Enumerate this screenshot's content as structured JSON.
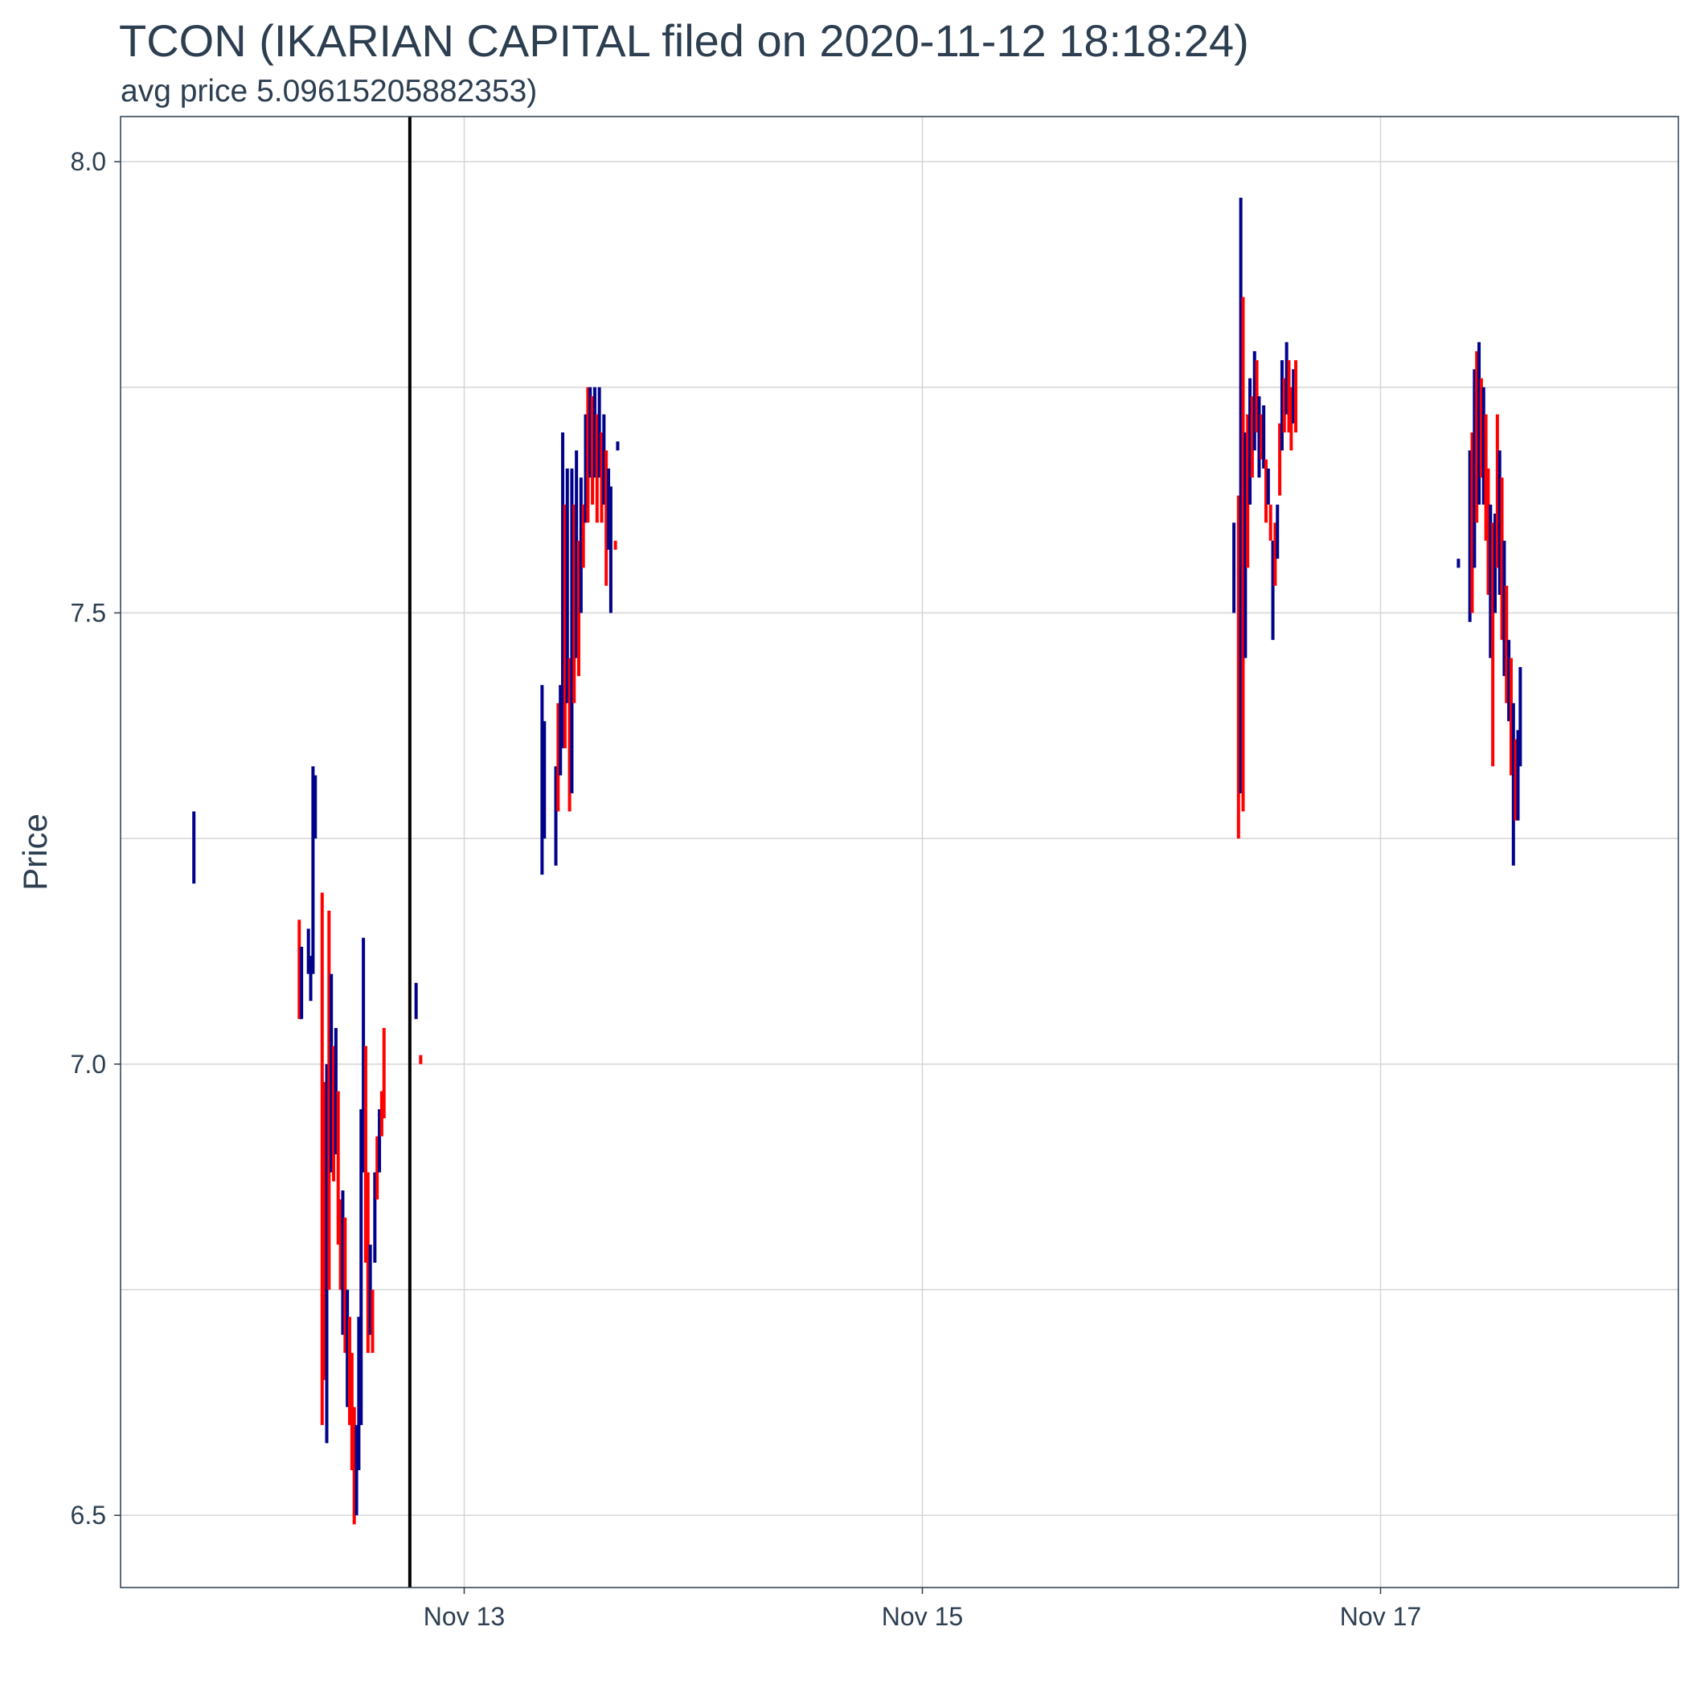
{
  "chart_data": {
    "type": "candlestick",
    "title": "TCON (IKARIAN CAPITAL filed on 2020-11-12 18:18:24)",
    "subtitle": "avg price 5.09615205882353)",
    "xlabel": "",
    "ylabel": "Price",
    "x_ticks": [
      {
        "label": "Nov 13",
        "t": 13.0
      },
      {
        "label": "Nov 15",
        "t": 15.0
      },
      {
        "label": "Nov 17",
        "t": 17.0
      }
    ],
    "x_range": [
      11.5,
      18.3
    ],
    "y_ticks": [
      6.5,
      7.0,
      7.5,
      8.0
    ],
    "y_tick_labels": [
      "6.5",
      "7.0",
      "7.5",
      "8.0"
    ],
    "ylim": [
      6.42,
      8.05
    ],
    "grid": true,
    "filing_time": 12.7627,
    "colors": {
      "up": "#00008b",
      "down": "#ff0000",
      "marker": "#000000",
      "grid": "#d5d5d5",
      "panel_border": "#2c3e50"
    },
    "candles": [
      {
        "t": 11.82,
        "low": 7.2,
        "high": 7.28,
        "dir": "up"
      },
      {
        "t": 12.28,
        "low": 7.05,
        "high": 7.16,
        "dir": "down"
      },
      {
        "t": 12.29,
        "low": 7.05,
        "high": 7.13,
        "dir": "up"
      },
      {
        "t": 12.32,
        "low": 7.1,
        "high": 7.15,
        "dir": "up"
      },
      {
        "t": 12.33,
        "low": 7.07,
        "high": 7.12,
        "dir": "up"
      },
      {
        "t": 12.34,
        "low": 7.1,
        "high": 7.33,
        "dir": "up"
      },
      {
        "t": 12.35,
        "low": 7.25,
        "high": 7.32,
        "dir": "up"
      },
      {
        "t": 12.38,
        "low": 6.6,
        "high": 7.19,
        "dir": "down"
      },
      {
        "t": 12.39,
        "low": 6.65,
        "high": 6.98,
        "dir": "down"
      },
      {
        "t": 12.4,
        "low": 6.58,
        "high": 7.0,
        "dir": "up"
      },
      {
        "t": 12.41,
        "low": 6.75,
        "high": 7.17,
        "dir": "down"
      },
      {
        "t": 12.42,
        "low": 6.88,
        "high": 7.1,
        "dir": "up"
      },
      {
        "t": 12.43,
        "low": 6.87,
        "high": 7.02,
        "dir": "down"
      },
      {
        "t": 12.44,
        "low": 6.9,
        "high": 7.04,
        "dir": "up"
      },
      {
        "t": 12.45,
        "low": 6.8,
        "high": 6.97,
        "dir": "down"
      },
      {
        "t": 12.46,
        "low": 6.75,
        "high": 6.85,
        "dir": "down"
      },
      {
        "t": 12.47,
        "low": 6.7,
        "high": 6.86,
        "dir": "up"
      },
      {
        "t": 12.48,
        "low": 6.68,
        "high": 6.83,
        "dir": "down"
      },
      {
        "t": 12.49,
        "low": 6.62,
        "high": 6.75,
        "dir": "up"
      },
      {
        "t": 12.5,
        "low": 6.6,
        "high": 6.72,
        "dir": "down"
      },
      {
        "t": 12.51,
        "low": 6.55,
        "high": 6.68,
        "dir": "down"
      },
      {
        "t": 12.52,
        "low": 6.49,
        "high": 6.62,
        "dir": "down"
      },
      {
        "t": 12.53,
        "low": 6.5,
        "high": 6.6,
        "dir": "up"
      },
      {
        "t": 12.54,
        "low": 6.55,
        "high": 6.72,
        "dir": "up"
      },
      {
        "t": 12.55,
        "low": 6.6,
        "high": 6.95,
        "dir": "up"
      },
      {
        "t": 12.56,
        "low": 6.88,
        "high": 7.14,
        "dir": "up"
      },
      {
        "t": 12.57,
        "low": 6.78,
        "high": 7.02,
        "dir": "down"
      },
      {
        "t": 12.58,
        "low": 6.68,
        "high": 6.88,
        "dir": "down"
      },
      {
        "t": 12.59,
        "low": 6.7,
        "high": 6.8,
        "dir": "up"
      },
      {
        "t": 12.6,
        "low": 6.68,
        "high": 6.75,
        "dir": "down"
      },
      {
        "t": 12.61,
        "low": 6.78,
        "high": 6.88,
        "dir": "up"
      },
      {
        "t": 12.62,
        "low": 6.85,
        "high": 6.92,
        "dir": "down"
      },
      {
        "t": 12.63,
        "low": 6.88,
        "high": 6.95,
        "dir": "up"
      },
      {
        "t": 12.64,
        "low": 6.92,
        "high": 6.97,
        "dir": "down"
      },
      {
        "t": 12.65,
        "low": 6.94,
        "high": 7.04,
        "dir": "down"
      },
      {
        "t": 12.79,
        "low": 7.05,
        "high": 7.09,
        "dir": "up"
      },
      {
        "t": 12.81,
        "low": 7.0,
        "high": 7.01,
        "dir": "down"
      },
      {
        "t": 13.34,
        "low": 7.21,
        "high": 7.42,
        "dir": "up"
      },
      {
        "t": 13.35,
        "low": 7.25,
        "high": 7.38,
        "dir": "up"
      },
      {
        "t": 13.4,
        "low": 7.22,
        "high": 7.33,
        "dir": "up"
      },
      {
        "t": 13.41,
        "low": 7.28,
        "high": 7.4,
        "dir": "down"
      },
      {
        "t": 13.42,
        "low": 7.32,
        "high": 7.42,
        "dir": "up"
      },
      {
        "t": 13.43,
        "low": 7.35,
        "high": 7.7,
        "dir": "up"
      },
      {
        "t": 13.44,
        "low": 7.35,
        "high": 7.62,
        "dir": "down"
      },
      {
        "t": 13.45,
        "low": 7.4,
        "high": 7.66,
        "dir": "up"
      },
      {
        "t": 13.46,
        "low": 7.28,
        "high": 7.45,
        "dir": "down"
      },
      {
        "t": 13.47,
        "low": 7.3,
        "high": 7.66,
        "dir": "up"
      },
      {
        "t": 13.48,
        "low": 7.4,
        "high": 7.62,
        "dir": "down"
      },
      {
        "t": 13.49,
        "low": 7.45,
        "high": 7.68,
        "dir": "up"
      },
      {
        "t": 13.5,
        "low": 7.43,
        "high": 7.58,
        "dir": "down"
      },
      {
        "t": 13.51,
        "low": 7.5,
        "high": 7.65,
        "dir": "up"
      },
      {
        "t": 13.52,
        "low": 7.55,
        "high": 7.62,
        "dir": "down"
      },
      {
        "t": 13.53,
        "low": 7.6,
        "high": 7.72,
        "dir": "up"
      },
      {
        "t": 13.54,
        "low": 7.6,
        "high": 7.75,
        "dir": "down"
      },
      {
        "t": 13.55,
        "low": 7.65,
        "high": 7.75,
        "dir": "up"
      },
      {
        "t": 13.56,
        "low": 7.62,
        "high": 7.74,
        "dir": "down"
      },
      {
        "t": 13.57,
        "low": 7.65,
        "high": 7.75,
        "dir": "up"
      },
      {
        "t": 13.58,
        "low": 7.6,
        "high": 7.72,
        "dir": "down"
      },
      {
        "t": 13.59,
        "low": 7.65,
        "high": 7.75,
        "dir": "up"
      },
      {
        "t": 13.6,
        "low": 7.6,
        "high": 7.7,
        "dir": "down"
      },
      {
        "t": 13.61,
        "low": 7.62,
        "high": 7.72,
        "dir": "up"
      },
      {
        "t": 13.62,
        "low": 7.53,
        "high": 7.68,
        "dir": "down"
      },
      {
        "t": 13.63,
        "low": 7.57,
        "high": 7.66,
        "dir": "up"
      },
      {
        "t": 13.64,
        "low": 7.5,
        "high": 7.64,
        "dir": "up"
      },
      {
        "t": 13.66,
        "low": 7.57,
        "high": 7.58,
        "dir": "down"
      },
      {
        "t": 13.67,
        "low": 7.68,
        "high": 7.69,
        "dir": "up"
      },
      {
        "t": 16.36,
        "low": 7.5,
        "high": 7.6,
        "dir": "up"
      },
      {
        "t": 16.38,
        "low": 7.25,
        "high": 7.63,
        "dir": "down"
      },
      {
        "t": 16.39,
        "low": 7.3,
        "high": 7.96,
        "dir": "up"
      },
      {
        "t": 16.4,
        "low": 7.28,
        "high": 7.85,
        "dir": "down"
      },
      {
        "t": 16.41,
        "low": 7.45,
        "high": 7.7,
        "dir": "up"
      },
      {
        "t": 16.42,
        "low": 7.55,
        "high": 7.72,
        "dir": "down"
      },
      {
        "t": 16.43,
        "low": 7.62,
        "high": 7.76,
        "dir": "up"
      },
      {
        "t": 16.44,
        "low": 7.65,
        "high": 7.74,
        "dir": "down"
      },
      {
        "t": 16.45,
        "low": 7.68,
        "high": 7.79,
        "dir": "up"
      },
      {
        "t": 16.46,
        "low": 7.7,
        "high": 7.78,
        "dir": "down"
      },
      {
        "t": 16.47,
        "low": 7.65,
        "high": 7.74,
        "dir": "up"
      },
      {
        "t": 16.48,
        "low": 7.67,
        "high": 7.72,
        "dir": "down"
      },
      {
        "t": 16.49,
        "low": 7.66,
        "high": 7.73,
        "dir": "up"
      },
      {
        "t": 16.5,
        "low": 7.6,
        "high": 7.67,
        "dir": "down"
      },
      {
        "t": 16.51,
        "low": 7.62,
        "high": 7.66,
        "dir": "up"
      },
      {
        "t": 16.52,
        "low": 7.58,
        "high": 7.62,
        "dir": "down"
      },
      {
        "t": 16.53,
        "low": 7.47,
        "high": 7.58,
        "dir": "up"
      },
      {
        "t": 16.54,
        "low": 7.53,
        "high": 7.6,
        "dir": "down"
      },
      {
        "t": 16.55,
        "low": 7.56,
        "high": 7.62,
        "dir": "up"
      },
      {
        "t": 16.56,
        "low": 7.63,
        "high": 7.71,
        "dir": "down"
      },
      {
        "t": 16.57,
        "low": 7.68,
        "high": 7.78,
        "dir": "up"
      },
      {
        "t": 16.58,
        "low": 7.7,
        "high": 7.76,
        "dir": "down"
      },
      {
        "t": 16.59,
        "low": 7.72,
        "high": 7.8,
        "dir": "up"
      },
      {
        "t": 16.6,
        "low": 7.7,
        "high": 7.78,
        "dir": "down"
      },
      {
        "t": 16.61,
        "low": 7.68,
        "high": 7.75,
        "dir": "down"
      },
      {
        "t": 16.62,
        "low": 7.71,
        "high": 7.77,
        "dir": "up"
      },
      {
        "t": 16.63,
        "low": 7.7,
        "high": 7.78,
        "dir": "down"
      },
      {
        "t": 17.34,
        "low": 7.55,
        "high": 7.56,
        "dir": "up"
      },
      {
        "t": 17.39,
        "low": 7.49,
        "high": 7.68,
        "dir": "up"
      },
      {
        "t": 17.4,
        "low": 7.5,
        "high": 7.7,
        "dir": "down"
      },
      {
        "t": 17.41,
        "low": 7.55,
        "high": 7.77,
        "dir": "up"
      },
      {
        "t": 17.42,
        "low": 7.6,
        "high": 7.79,
        "dir": "down"
      },
      {
        "t": 17.43,
        "low": 7.62,
        "high": 7.8,
        "dir": "up"
      },
      {
        "t": 17.44,
        "low": 7.65,
        "high": 7.76,
        "dir": "down"
      },
      {
        "t": 17.45,
        "low": 7.62,
        "high": 7.75,
        "dir": "up"
      },
      {
        "t": 17.46,
        "low": 7.58,
        "high": 7.72,
        "dir": "down"
      },
      {
        "t": 17.47,
        "low": 7.52,
        "high": 7.66,
        "dir": "down"
      },
      {
        "t": 17.48,
        "low": 7.45,
        "high": 7.62,
        "dir": "up"
      },
      {
        "t": 17.49,
        "low": 7.33,
        "high": 7.6,
        "dir": "down"
      },
      {
        "t": 17.5,
        "low": 7.5,
        "high": 7.61,
        "dir": "up"
      },
      {
        "t": 17.51,
        "low": 7.55,
        "high": 7.72,
        "dir": "down"
      },
      {
        "t": 17.52,
        "low": 7.52,
        "high": 7.68,
        "dir": "up"
      },
      {
        "t": 17.53,
        "low": 7.47,
        "high": 7.65,
        "dir": "down"
      },
      {
        "t": 17.54,
        "low": 7.43,
        "high": 7.58,
        "dir": "up"
      },
      {
        "t": 17.55,
        "low": 7.4,
        "high": 7.53,
        "dir": "down"
      },
      {
        "t": 17.56,
        "low": 7.38,
        "high": 7.47,
        "dir": "up"
      },
      {
        "t": 17.57,
        "low": 7.32,
        "high": 7.45,
        "dir": "down"
      },
      {
        "t": 17.58,
        "low": 7.22,
        "high": 7.4,
        "dir": "up"
      },
      {
        "t": 17.59,
        "low": 7.27,
        "high": 7.36,
        "dir": "down"
      },
      {
        "t": 17.6,
        "low": 7.27,
        "high": 7.37,
        "dir": "up"
      },
      {
        "t": 17.61,
        "low": 7.33,
        "high": 7.44,
        "dir": "up"
      }
    ]
  }
}
